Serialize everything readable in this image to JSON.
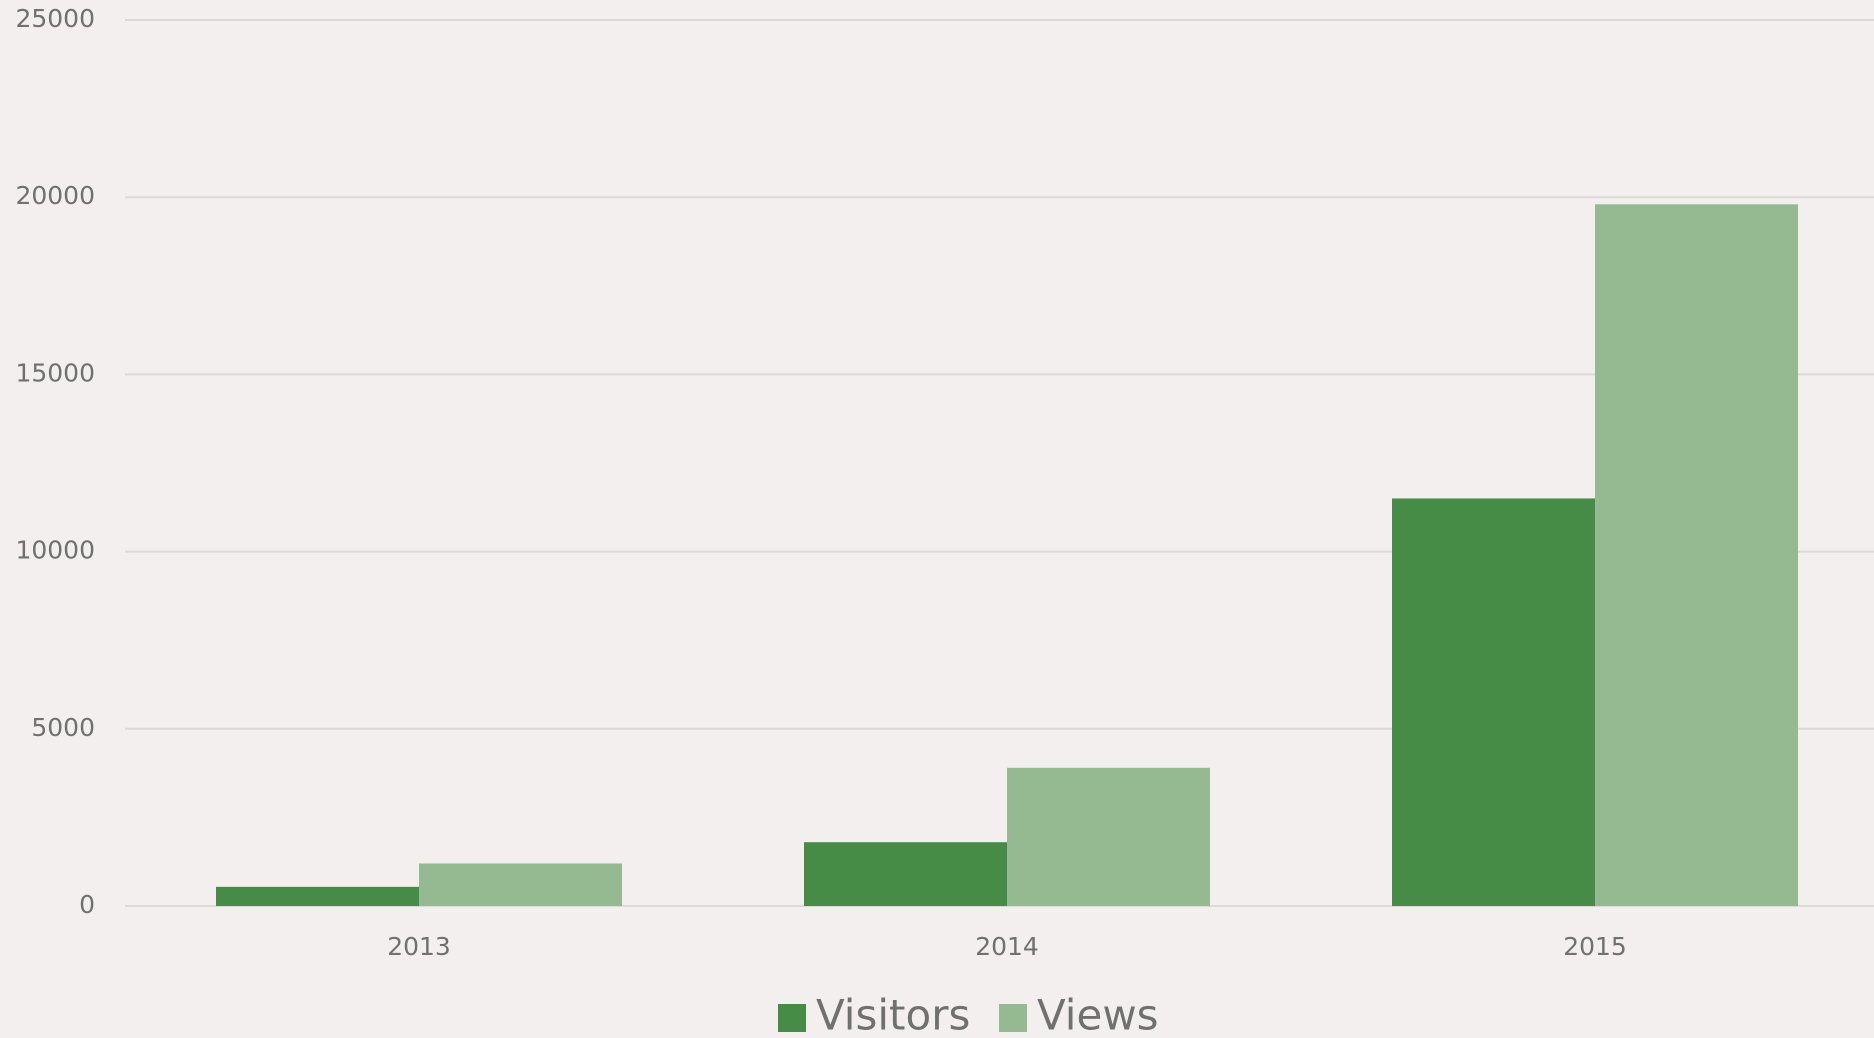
{
  "chart_data": {
    "type": "bar",
    "categories": [
      "2013",
      "2014",
      "2015"
    ],
    "series": [
      {
        "name": "Visitors",
        "color": "#468c47",
        "values": [
          540,
          1800,
          11500
        ]
      },
      {
        "name": "Views",
        "color": "#95ba92",
        "values": [
          1200,
          3900,
          19800
        ]
      }
    ],
    "ylim": [
      0,
      25000
    ],
    "yticks": [
      0,
      5000,
      10000,
      15000,
      20000,
      25000
    ],
    "grid": true,
    "legend": "bottom"
  }
}
